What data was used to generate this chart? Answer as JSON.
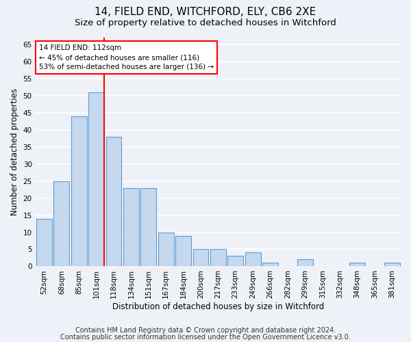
{
  "title": "14, FIELD END, WITCHFORD, ELY, CB6 2XE",
  "subtitle": "Size of property relative to detached houses in Witchford",
  "xlabel": "Distribution of detached houses by size in Witchford",
  "ylabel": "Number of detached properties",
  "categories": [
    "52sqm",
    "68sqm",
    "85sqm",
    "101sqm",
    "118sqm",
    "134sqm",
    "151sqm",
    "167sqm",
    "184sqm",
    "200sqm",
    "217sqm",
    "233sqm",
    "249sqm",
    "266sqm",
    "282sqm",
    "299sqm",
    "315sqm",
    "332sqm",
    "348sqm",
    "365sqm",
    "381sqm"
  ],
  "values": [
    14,
    25,
    44,
    51,
    38,
    23,
    23,
    10,
    9,
    5,
    5,
    3,
    4,
    1,
    0,
    2,
    0,
    0,
    1,
    0,
    1
  ],
  "bar_color": "#c5d8ed",
  "bar_edge_color": "#5b9bd5",
  "ylim": [
    0,
    67
  ],
  "yticks": [
    0,
    5,
    10,
    15,
    20,
    25,
    30,
    35,
    40,
    45,
    50,
    55,
    60,
    65
  ],
  "property_bar_index": 3,
  "annotation_line1": "14 FIELD END: 112sqm",
  "annotation_line2": "← 45% of detached houses are smaller (116)",
  "annotation_line3": "53% of semi-detached houses are larger (136) →",
  "annotation_box_color": "white",
  "annotation_box_edge_color": "red",
  "vline_color": "red",
  "footer1": "Contains HM Land Registry data © Crown copyright and database right 2024.",
  "footer2": "Contains public sector information licensed under the Open Government Licence v3.0.",
  "background_color": "#eef2f8",
  "grid_color": "white",
  "title_fontsize": 11,
  "subtitle_fontsize": 9.5,
  "axis_label_fontsize": 8.5,
  "tick_fontsize": 7.5,
  "footer_fontsize": 7
}
